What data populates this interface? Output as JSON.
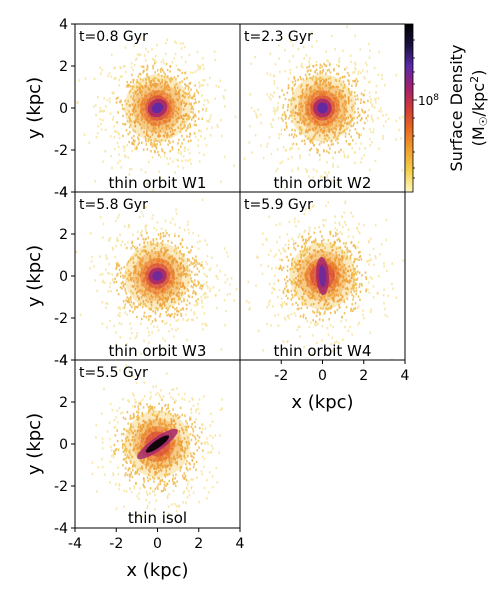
{
  "chart_data": {
    "type": "heatmap",
    "axes": {
      "xlabel": "x (kpc)",
      "ylabel": "y (kpc)",
      "xlim": [
        -4,
        4
      ],
      "ylim": [
        -4,
        4
      ],
      "xticks": [
        "-4",
        "-2",
        "0",
        "2",
        "4"
      ],
      "yticks": [
        "4",
        "2",
        "0",
        "-2",
        "-4"
      ],
      "xticks_inner": [
        "-2",
        "0",
        "2",
        "4"
      ]
    },
    "colorbar": {
      "label_line1": "Surface Density",
      "label_line2_prefix": "(M",
      "label_line2_sub": "☉",
      "label_line2_mid": "/kpc",
      "label_line2_sup": "2",
      "label_line2_suffix": ")",
      "tick_base": "10",
      "tick_exp": "8",
      "scale": "log",
      "colors": [
        "#fff7c0",
        "#f5d04a",
        "#f0a030",
        "#e86a1f",
        "#d23a3a",
        "#a02070",
        "#5a2aa8",
        "#1a1040",
        "#000000"
      ]
    },
    "panels": [
      {
        "time": "t=0.8 Gyr",
        "name": "thin orbit W1",
        "morphology": "compact core, mild bar"
      },
      {
        "time": "t=2.3 Gyr",
        "name": "thin orbit W2",
        "morphology": "round core"
      },
      {
        "time": "t=5.8 Gyr",
        "name": "thin orbit W3",
        "morphology": "round core"
      },
      {
        "time": "t=5.9 Gyr",
        "name": "thin orbit W4",
        "morphology": "vertical elongated bar"
      },
      {
        "time": "t=5.5 Gyr",
        "name": "thin isol",
        "morphology": "strong tilted bar"
      }
    ]
  }
}
